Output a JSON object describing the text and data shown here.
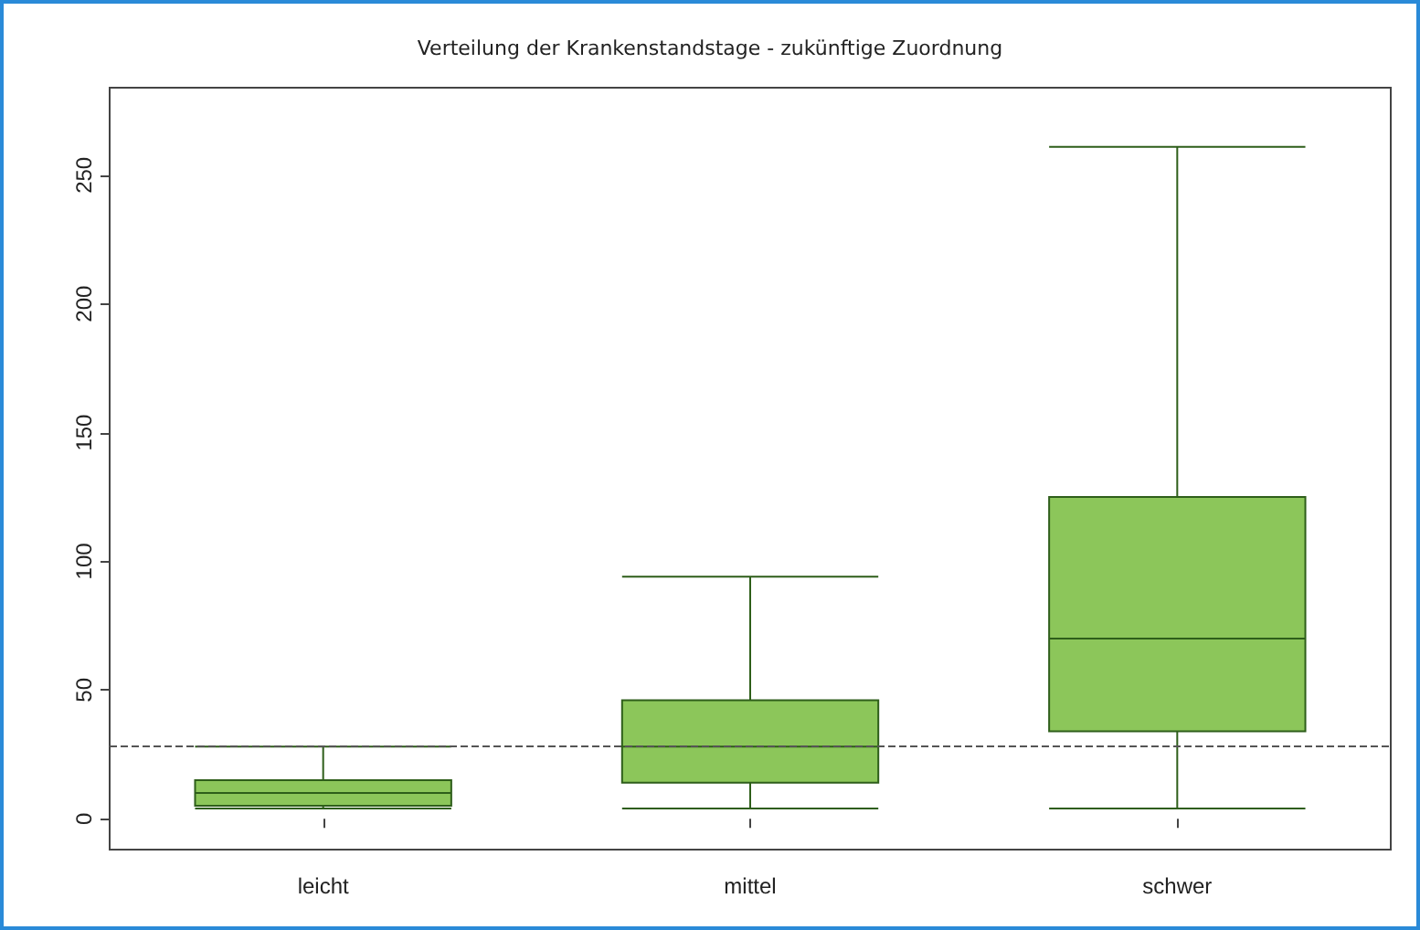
{
  "chart_data": {
    "type": "box",
    "title": "Verteilung der Krankenstandstage - zukünftige Zuordnung",
    "categories": [
      "leicht",
      "mittel",
      "schwer"
    ],
    "boxes": [
      {
        "low": 4,
        "q1": 5,
        "median": 10,
        "q3": 15,
        "high": 28
      },
      {
        "low": 4,
        "q1": 14,
        "median": 28,
        "q3": 46,
        "high": 94
      },
      {
        "low": 4,
        "q1": 34,
        "median": 70,
        "q3": 125,
        "high": 261
      }
    ],
    "color": "#8cc65a",
    "ylim": [
      -12,
      284
    ],
    "yticks": [
      0,
      50,
      100,
      150,
      200,
      250
    ],
    "grid": false,
    "ref_lines": [
      {
        "axis": "y",
        "value": 28,
        "color": "#555555",
        "line_style": "dashed"
      }
    ]
  }
}
